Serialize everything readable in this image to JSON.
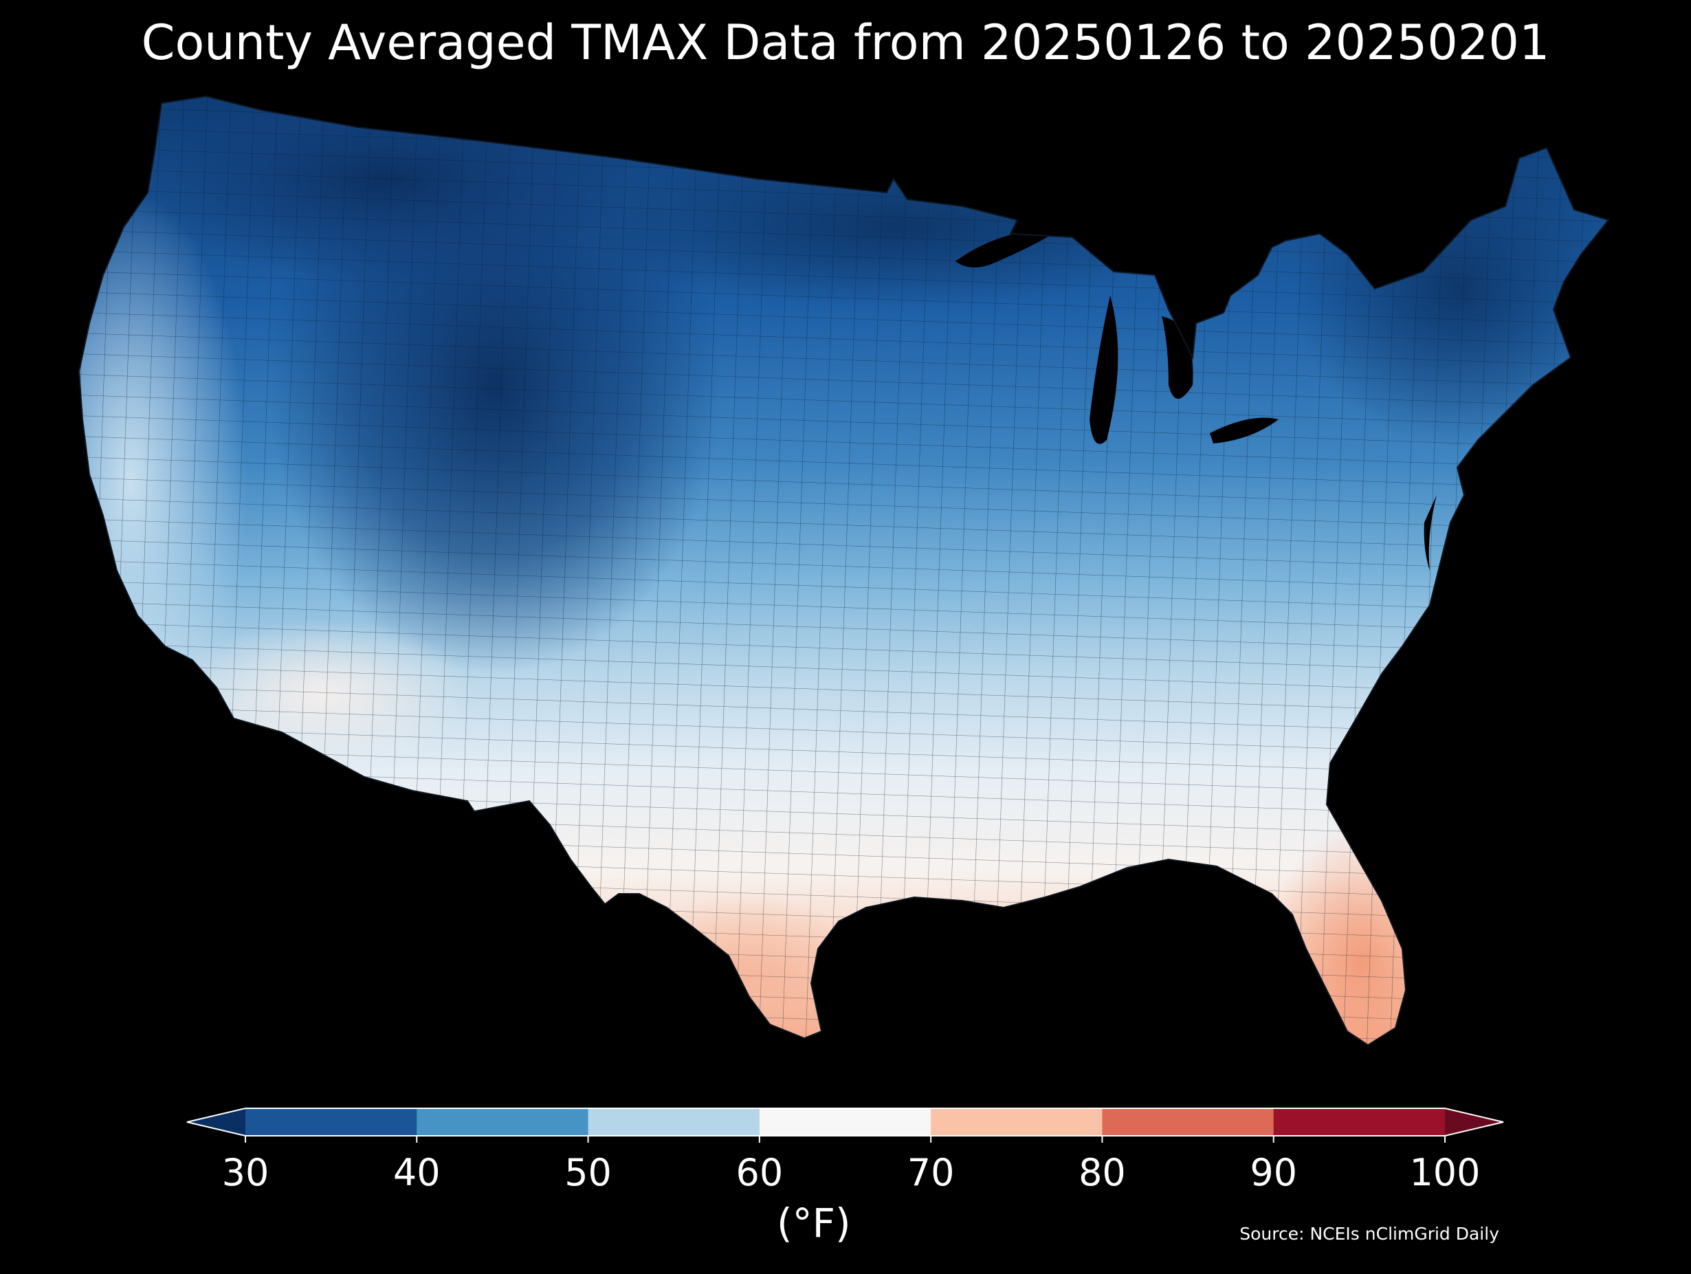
{
  "title": "County Averaged TMAX Data from 20250126 to 20250201",
  "map": {
    "type": "choropleth",
    "region": "Contiguous United States counties",
    "variable": "Average daily maximum temperature (TMAX)",
    "regional_pattern": [
      {
        "area": "Northern Rockies, Montana, Wyoming, Colorado mountains",
        "value_f": "below 30"
      },
      {
        "area": "Northern Plains, Upper Midwest, New England",
        "value_f": "30-40"
      },
      {
        "area": "Great Basin, Central Plains, Ohio Valley, Mid-Atlantic interior",
        "value_f": "40-50"
      },
      {
        "area": "Pacific Coast, Southern Plains, Tennessee Valley",
        "value_f": "50-60"
      },
      {
        "area": "Desert Southwest, Gulf Coast states, Southeast",
        "value_f": "60-70"
      },
      {
        "area": "South Texas, Florida peninsula",
        "value_f": "70-80"
      }
    ]
  },
  "colorbar": {
    "ticks": [
      "30",
      "40",
      "50",
      "60",
      "70",
      "80",
      "90",
      "100"
    ],
    "bins": [
      "#1a5597",
      "#4793c5",
      "#b5d6e9",
      "#f7f7f7",
      "#fac3a7",
      "#dc6a56",
      "#9a1129"
    ],
    "under_color": "#0a2f62",
    "over_color": "#6a0a21",
    "unit": "(°F)",
    "extend": "both"
  },
  "source": "Source: NCEIs nClimGrid Daily",
  "colors": {
    "background": "#000000",
    "text": "#ffffff",
    "border": "#111111"
  }
}
